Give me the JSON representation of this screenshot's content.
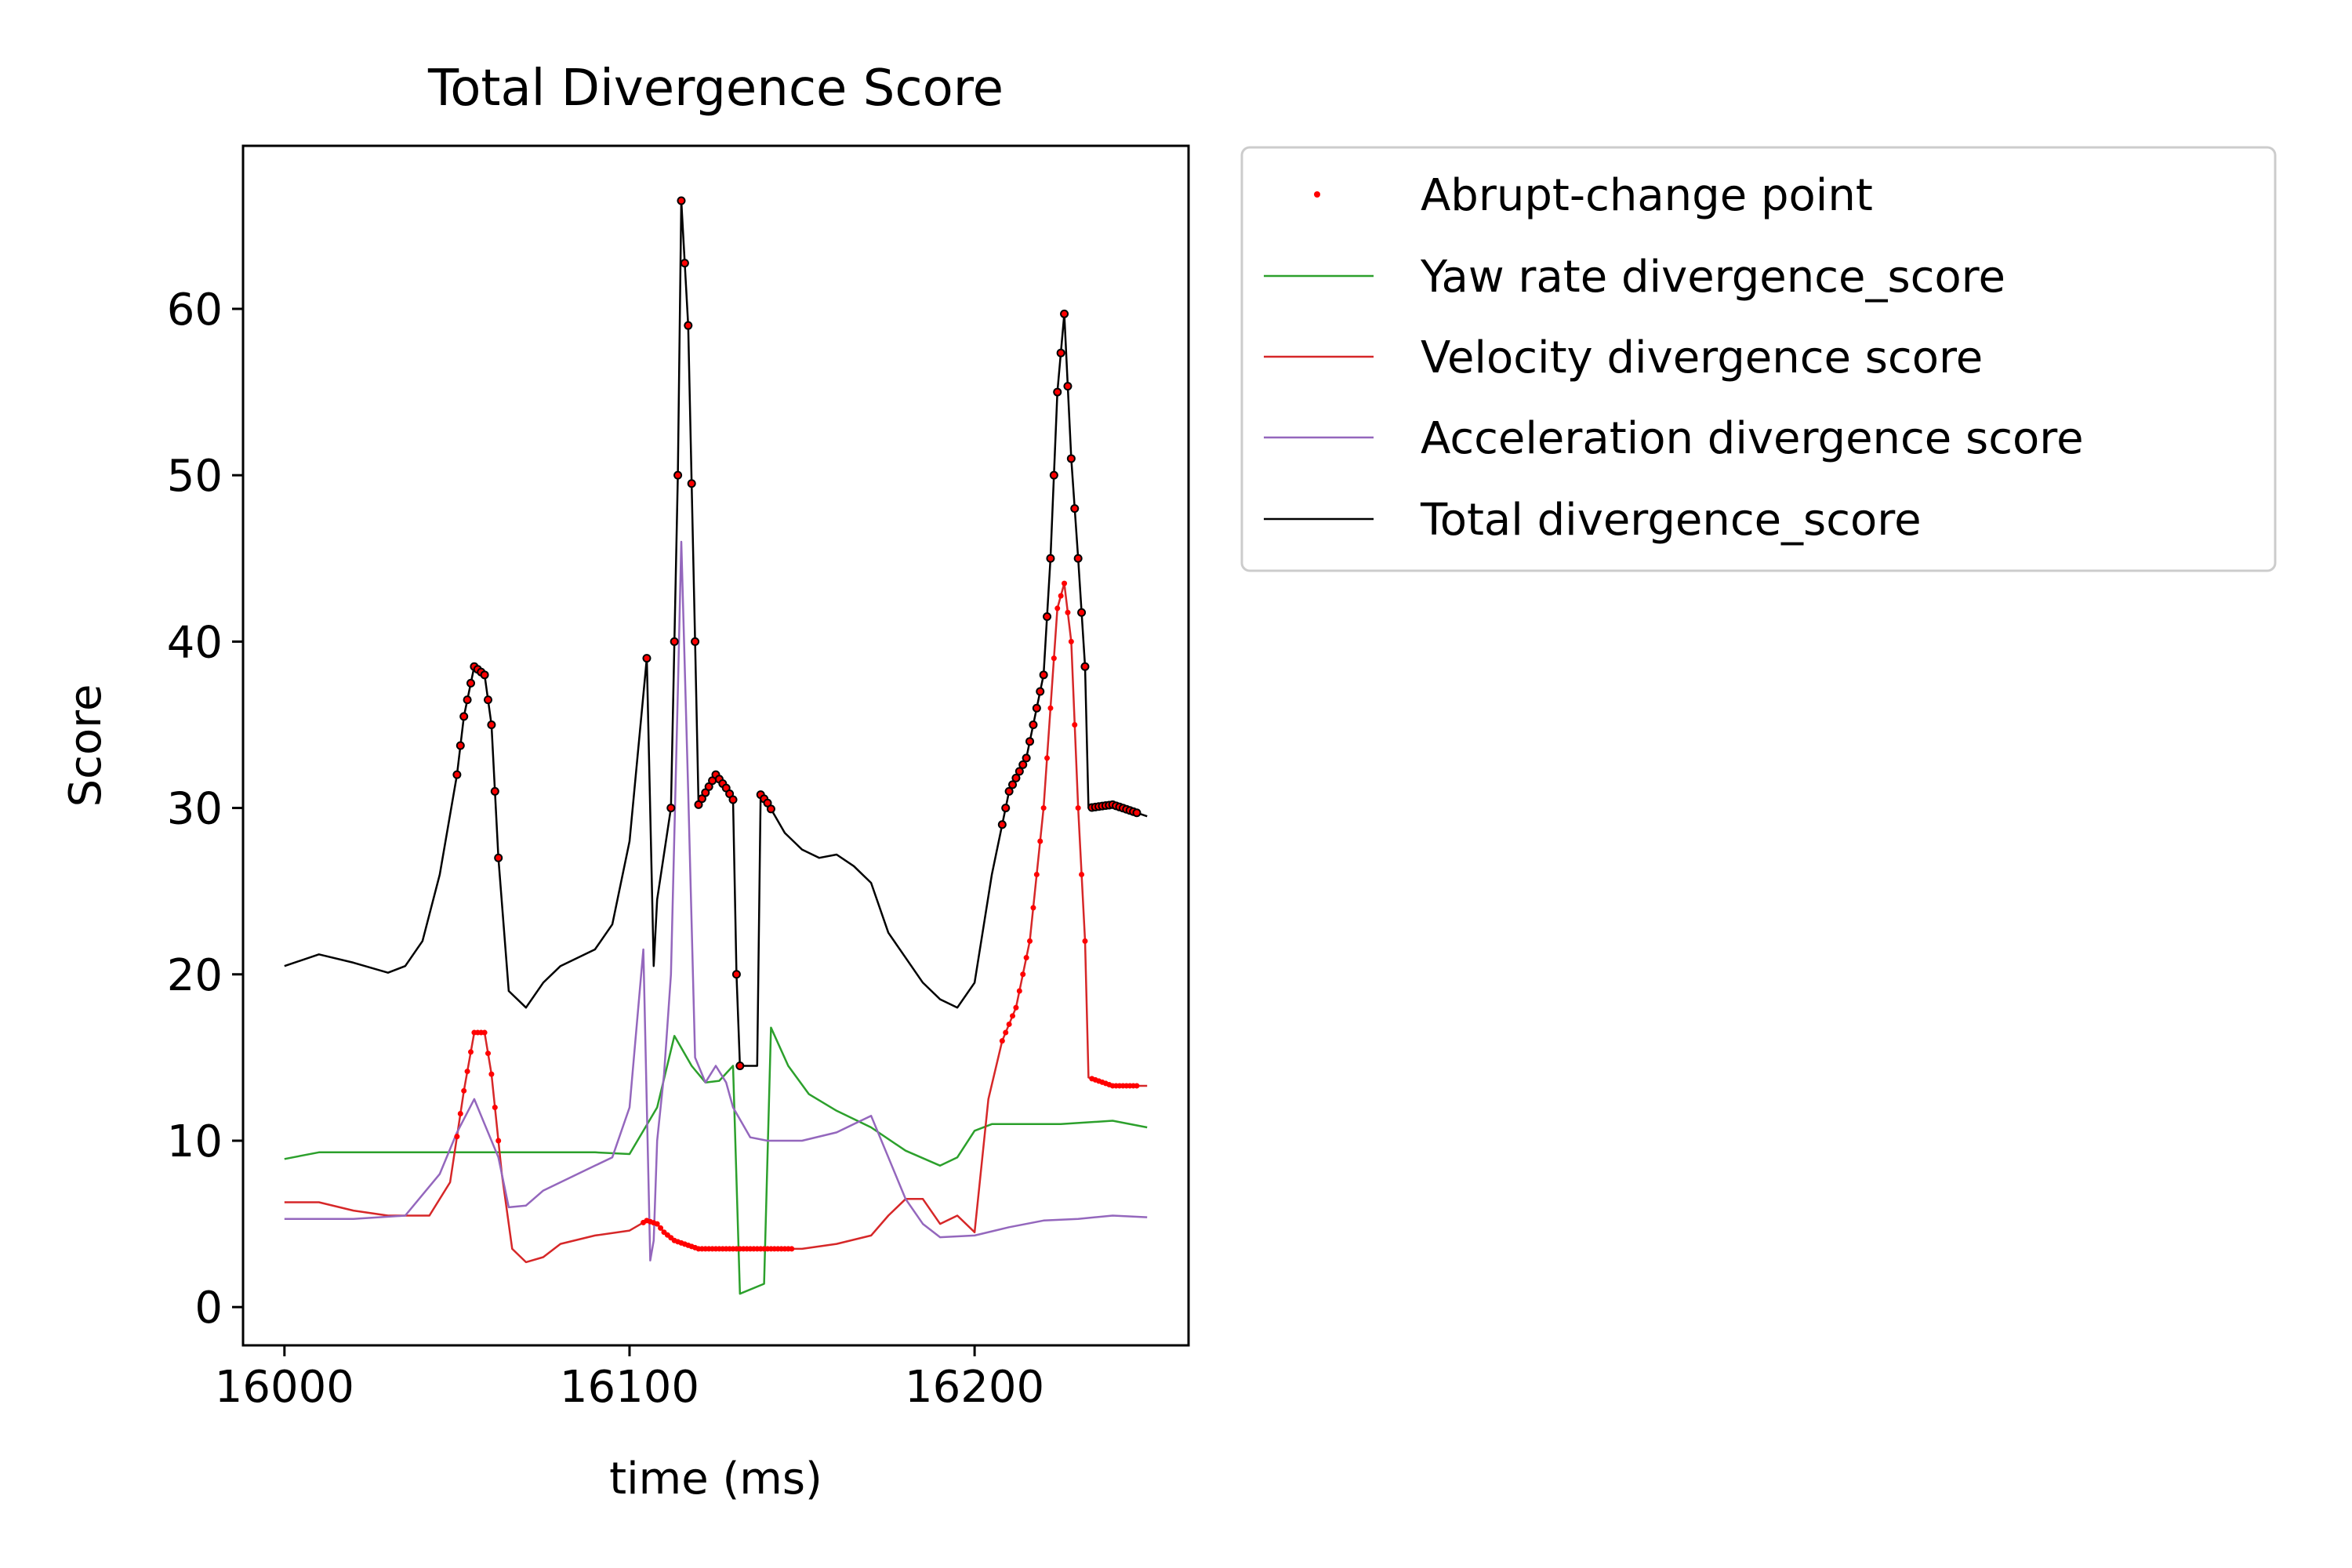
{
  "chart_data": {
    "type": "line",
    "title": "Total Divergence Score",
    "xlabel": "time (ms)",
    "ylabel": "Score",
    "xlim": [
      15988,
      16262
    ],
    "ylim": [
      -2.3,
      69.8
    ],
    "xticks": [
      16000,
      16100,
      16200
    ],
    "yticks": [
      0,
      10,
      20,
      30,
      40,
      50,
      60
    ],
    "grid": false,
    "legend_position": "outside-upper-right",
    "legend": [
      {
        "label": "Abrupt-change point",
        "color": "#ff0000",
        "marker": "dot"
      },
      {
        "label": "Yaw rate divergence_score",
        "color": "#2ca02c"
      },
      {
        "label": "Velocity divergence score",
        "color": "#d62728"
      },
      {
        "label": "Acceleration divergence score",
        "color": "#9467bd"
      },
      {
        "label": "Total divergence_score",
        "color": "#000000"
      }
    ],
    "series": [
      {
        "name": "Yaw rate divergence_score",
        "color": "#2ca02c",
        "x": [
          16000,
          16010,
          16040,
          16070,
          16090,
          16100,
          16108,
          16113,
          16118,
          16122,
          16126,
          16130,
          16132,
          16139,
          16141,
          16146,
          16152,
          16160,
          16170,
          16180,
          16190,
          16195,
          16200,
          16205,
          16215,
          16225,
          16240,
          16250
        ],
        "values": [
          8.9,
          9.3,
          9.3,
          9.3,
          9.3,
          9.2,
          12.0,
          16.3,
          14.5,
          13.5,
          13.6,
          14.5,
          0.8,
          1.4,
          16.8,
          14.5,
          12.8,
          11.8,
          10.8,
          9.4,
          8.5,
          9.0,
          10.6,
          11.0,
          11.0,
          11.0,
          11.2,
          10.8
        ]
      },
      {
        "name": "Velocity divergence score",
        "color": "#d62728",
        "x": [
          16000,
          16010,
          16020,
          16030,
          16042,
          16048,
          16052,
          16055,
          16058,
          16060,
          16063,
          16066,
          16070,
          16075,
          16080,
          16090,
          16100,
          16105,
          16108,
          16110,
          16113,
          16120,
          16130,
          16140,
          16150,
          16160,
          16170,
          16175,
          16180,
          16185,
          16190,
          16195,
          16200,
          16204,
          16208,
          16212,
          16216,
          16220,
          16224,
          16226,
          16228,
          16230,
          16232,
          16233,
          16240,
          16250
        ],
        "values": [
          6.3,
          6.3,
          5.8,
          5.5,
          5.5,
          7.5,
          13.0,
          16.5,
          16.5,
          14.0,
          8.0,
          3.5,
          2.7,
          3.0,
          3.8,
          4.3,
          4.6,
          5.2,
          5.0,
          4.5,
          4.0,
          3.5,
          3.5,
          3.5,
          3.5,
          3.8,
          4.3,
          5.5,
          6.5,
          6.5,
          5.0,
          5.5,
          4.5,
          12.5,
          16.0,
          18.0,
          22.0,
          30.0,
          42.0,
          43.5,
          40.0,
          30.0,
          22.0,
          13.8,
          13.3,
          13.3
        ]
      },
      {
        "name": "Acceleration divergence score",
        "color": "#9467bd",
        "x": [
          16000,
          16020,
          16035,
          16045,
          16050,
          16055,
          16058,
          16062,
          16065,
          16070,
          16075,
          16080,
          16090,
          16095,
          16100,
          16104,
          16106,
          16107,
          16108,
          16110,
          16112,
          16114,
          16115,
          16117,
          16119,
          16122,
          16125,
          16128,
          16130,
          16135,
          16140,
          16150,
          16160,
          16165,
          16170,
          16175,
          16180,
          16185,
          16190,
          16200,
          16210,
          16220,
          16230,
          16240,
          16250
        ],
        "values": [
          5.3,
          5.3,
          5.5,
          8.0,
          10.5,
          12.5,
          11.0,
          9.0,
          6.0,
          6.1,
          7.0,
          7.5,
          8.5,
          9.0,
          12.0,
          21.5,
          2.8,
          4.0,
          10.0,
          14.0,
          20.0,
          37.0,
          46.0,
          31.0,
          15.0,
          13.5,
          14.5,
          13.5,
          12.0,
          10.2,
          10.0,
          10.0,
          10.5,
          11.0,
          11.5,
          9.0,
          6.5,
          5.0,
          4.2,
          4.3,
          4.8,
          5.2,
          5.3,
          5.5,
          5.4
        ]
      },
      {
        "name": "Total divergence_score",
        "color": "#000000",
        "x": [
          16000,
          16010,
          16020,
          16030,
          16035,
          16040,
          16045,
          16050,
          16052,
          16055,
          16058,
          16060,
          16062,
          16065,
          16070,
          16075,
          16080,
          16085,
          16090,
          16095,
          16100,
          16105,
          16107,
          16108,
          16112,
          16114,
          16115,
          16117,
          16119,
          16120,
          16125,
          16128,
          16130,
          16131,
          16132,
          16137,
          16138,
          16140,
          16145,
          16150,
          16155,
          16160,
          16165,
          16170,
          16175,
          16180,
          16185,
          16190,
          16195,
          16200,
          16205,
          16210,
          16215,
          16220,
          16222,
          16224,
          16226,
          16228,
          16230,
          16232,
          16233,
          16240,
          16250
        ],
        "values": [
          20.5,
          21.2,
          20.7,
          20.1,
          20.5,
          22.0,
          26.0,
          32.0,
          35.5,
          38.5,
          38.0,
          35.0,
          27.0,
          19.0,
          18.0,
          19.5,
          20.5,
          21.0,
          21.5,
          23.0,
          28.0,
          39.0,
          20.5,
          24.5,
          30.0,
          50.0,
          66.5,
          59.0,
          40.0,
          30.2,
          32.0,
          31.2,
          30.5,
          20.0,
          14.5,
          14.5,
          30.8,
          30.3,
          28.5,
          27.5,
          27.0,
          27.2,
          26.5,
          25.5,
          22.5,
          21.0,
          19.5,
          18.5,
          18.0,
          19.5,
          26.0,
          31.0,
          33.0,
          38.0,
          45.0,
          55.0,
          59.7,
          51.0,
          45.0,
          38.5,
          30.0,
          30.2,
          29.5
        ]
      }
    ],
    "change_point_ranges": [
      {
        "series": "Total divergence_score",
        "from": 16050,
        "to": 16062
      },
      {
        "series": "Total divergence_score",
        "from": 16105,
        "to": 16105
      },
      {
        "series": "Total divergence_score",
        "from": 16112,
        "to": 16132
      },
      {
        "series": "Total divergence_score",
        "from": 16138,
        "to": 16141
      },
      {
        "series": "Total divergence_score",
        "from": 16208,
        "to": 16232
      },
      {
        "series": "Total divergence_score",
        "from": 16234,
        "to": 16247
      },
      {
        "series": "Velocity divergence score",
        "from": 16050,
        "to": 16062
      },
      {
        "series": "Velocity divergence score",
        "from": 16104,
        "to": 16147
      },
      {
        "series": "Velocity divergence score",
        "from": 16208,
        "to": 16232
      },
      {
        "series": "Velocity divergence score",
        "from": 16234,
        "to": 16247
      }
    ]
  }
}
